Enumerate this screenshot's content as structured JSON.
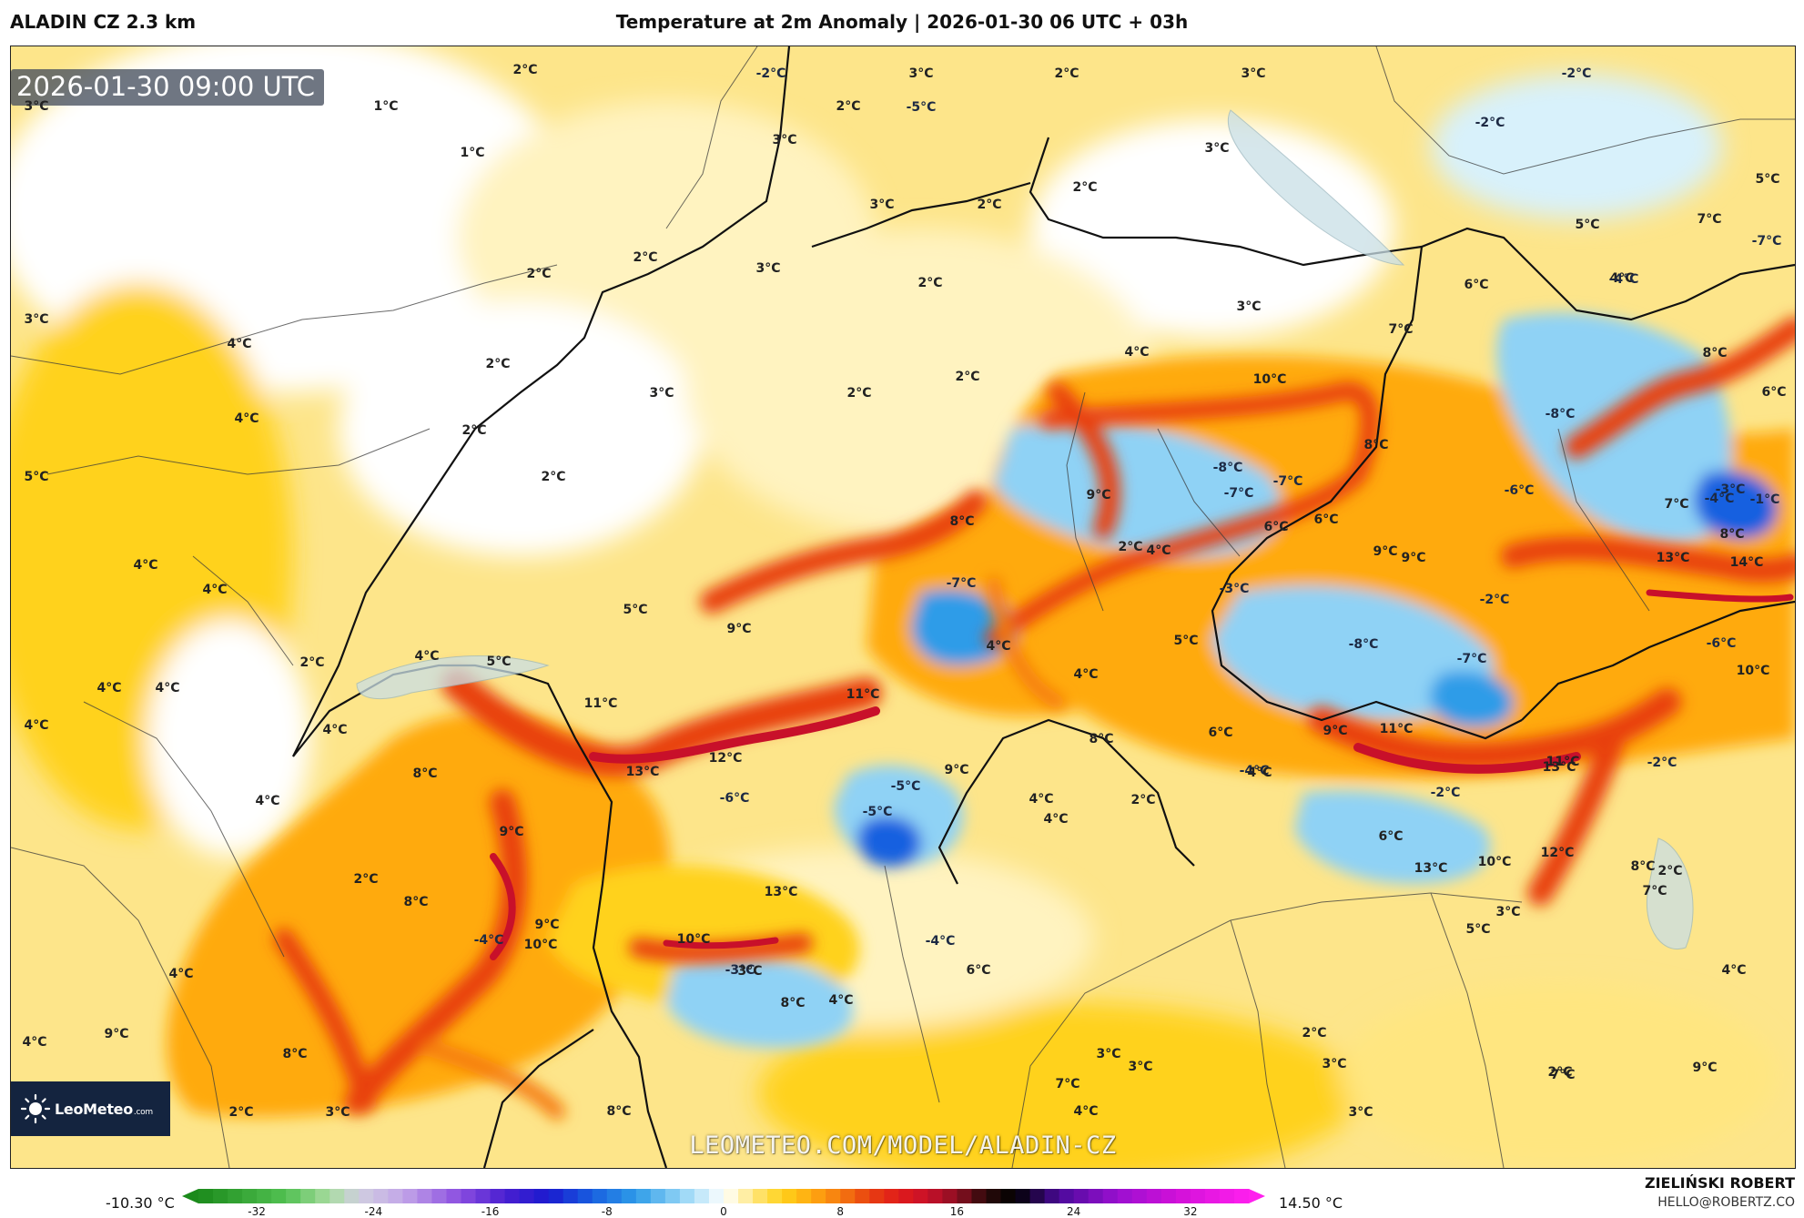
{
  "header": {
    "model": "ALADIN CZ 2.3 km",
    "title": "Temperature at 2m Anomaly | 2026-01-30 06 UTC + 03h"
  },
  "map": {
    "valid_time": "2026-01-30 09:00 UTC",
    "watermark": "LEOMETEO.COM/MODEL/ALADIN-CZ",
    "logo": {
      "name": "LeoMeteo",
      "suffix": ".com",
      "icon": "sun-icon"
    },
    "labels": [
      {
        "t": "2°C",
        "v": 2
      },
      {
        "t": "-2°C",
        "v": -2
      },
      {
        "t": "3°C",
        "v": 3
      },
      {
        "t": "2°C",
        "v": 2
      },
      {
        "t": "3°C",
        "v": 3
      },
      {
        "t": "-2°C",
        "v": -2
      },
      {
        "t": "3°C",
        "v": 3
      },
      {
        "t": "1°C",
        "v": 1
      },
      {
        "t": "2°C",
        "v": 2
      },
      {
        "t": "-5°C",
        "v": -5
      },
      {
        "t": "-2°C",
        "v": -2
      },
      {
        "t": "1°C",
        "v": 1
      },
      {
        "t": "3°C",
        "v": 3
      },
      {
        "t": "3°C",
        "v": 3
      },
      {
        "t": "2°C",
        "v": 2
      },
      {
        "t": "5°C",
        "v": 5
      },
      {
        "t": "3°C",
        "v": 3
      },
      {
        "t": "2°C",
        "v": 2
      },
      {
        "t": "5°C",
        "v": 5
      },
      {
        "t": "7°C",
        "v": 7
      },
      {
        "t": "-7°C",
        "v": -7
      },
      {
        "t": "4°C",
        "v": 4
      },
      {
        "t": "2°C",
        "v": 2
      },
      {
        "t": "2°C",
        "v": 2
      },
      {
        "t": "3°C",
        "v": 3
      },
      {
        "t": "2°C",
        "v": 2
      },
      {
        "t": "6°C",
        "v": 6
      },
      {
        "t": "-4°C",
        "v": -4
      },
      {
        "t": "3°C",
        "v": 3
      },
      {
        "t": "3°C",
        "v": 3
      },
      {
        "t": "7°C",
        "v": 7
      },
      {
        "t": "4°C",
        "v": 4
      },
      {
        "t": "2°C",
        "v": 2
      },
      {
        "t": "4°C",
        "v": 4
      },
      {
        "t": "8°C",
        "v": 8
      },
      {
        "t": "2°C",
        "v": 2
      },
      {
        "t": "3°C",
        "v": 3
      },
      {
        "t": "2°C",
        "v": 2
      },
      {
        "t": "10°C",
        "v": 10
      },
      {
        "t": "6°C",
        "v": 6
      },
      {
        "t": "4°C",
        "v": 4
      },
      {
        "t": "2°C",
        "v": 2
      },
      {
        "t": "-8°C",
        "v": -8
      },
      {
        "t": "5°C",
        "v": 5
      },
      {
        "t": "8°C",
        "v": 8
      },
      {
        "t": "2°C",
        "v": 2
      },
      {
        "t": "-7°C",
        "v": -7
      },
      {
        "t": "-8°C",
        "v": -8
      },
      {
        "t": "-6°C",
        "v": -6
      },
      {
        "t": "-3°C",
        "v": -3
      },
      {
        "t": "9°C",
        "v": 9
      },
      {
        "t": "-7°C",
        "v": -7
      },
      {
        "t": "7°C",
        "v": 7
      },
      {
        "t": "-4°C",
        "v": -4
      },
      {
        "t": "-1°C",
        "v": -1
      },
      {
        "t": "2°C",
        "v": 2
      },
      {
        "t": "6°C",
        "v": 6
      },
      {
        "t": "8°C",
        "v": 8
      },
      {
        "t": "6°C",
        "v": 6
      },
      {
        "t": "9°C",
        "v": 9
      },
      {
        "t": "8°C",
        "v": 8
      },
      {
        "t": "4°C",
        "v": 4
      },
      {
        "t": "9°C",
        "v": 9
      },
      {
        "t": "13°C",
        "v": 13
      },
      {
        "t": "14°C",
        "v": 14
      },
      {
        "t": "4°C",
        "v": 4
      },
      {
        "t": "-7°C",
        "v": -7
      },
      {
        "t": "4°C",
        "v": 4
      },
      {
        "t": "-3°C",
        "v": -3
      },
      {
        "t": "-2°C",
        "v": -2
      },
      {
        "t": "5°C",
        "v": 5
      },
      {
        "t": "9°C",
        "v": 9
      },
      {
        "t": "5°C",
        "v": 5
      },
      {
        "t": "4°C",
        "v": 4
      },
      {
        "t": "-8°C",
        "v": -8
      },
      {
        "t": "-6°C",
        "v": -6
      },
      {
        "t": "2°C",
        "v": 2
      },
      {
        "t": "4°C",
        "v": 4
      },
      {
        "t": "-7°C",
        "v": -7
      },
      {
        "t": "5°C",
        "v": 5
      },
      {
        "t": "10°C",
        "v": 10
      },
      {
        "t": "4°C",
        "v": 4
      },
      {
        "t": "4°C",
        "v": 4
      },
      {
        "t": "4°C",
        "v": 4
      },
      {
        "t": "11°C",
        "v": 11
      },
      {
        "t": "11°C",
        "v": 11
      },
      {
        "t": "4°C",
        "v": 4
      },
      {
        "t": "4°C",
        "v": 4
      },
      {
        "t": "11°C",
        "v": 11
      },
      {
        "t": "6°C",
        "v": 6
      },
      {
        "t": "9°C",
        "v": 9
      },
      {
        "t": "12°C",
        "v": 12
      },
      {
        "t": "13°C",
        "v": 13
      },
      {
        "t": "13°C",
        "v": 13
      },
      {
        "t": "8°C",
        "v": 8
      },
      {
        "t": "-4°C",
        "v": -4
      },
      {
        "t": "9°C",
        "v": 9
      },
      {
        "t": "-2°C",
        "v": -2
      },
      {
        "t": "8°C",
        "v": 8
      },
      {
        "t": "-5°C",
        "v": -5
      },
      {
        "t": "11°C",
        "v": 11
      },
      {
        "t": "4°C",
        "v": 4
      },
      {
        "t": "2°C",
        "v": 2
      },
      {
        "t": "4°C",
        "v": 4
      },
      {
        "t": "-2°C",
        "v": -2
      },
      {
        "t": "-6°C",
        "v": -6
      },
      {
        "t": "-5°C",
        "v": -5
      },
      {
        "t": "6°C",
        "v": 6
      },
      {
        "t": "12°C",
        "v": 12
      },
      {
        "t": "4°C",
        "v": 4
      },
      {
        "t": "10°C",
        "v": 10
      },
      {
        "t": "9°C",
        "v": 9
      },
      {
        "t": "4°C",
        "v": 4
      },
      {
        "t": "8°C",
        "v": 8
      },
      {
        "t": "10°C",
        "v": 10
      },
      {
        "t": "7°C",
        "v": 7
      },
      {
        "t": "13°C",
        "v": 13
      },
      {
        "t": "13°C",
        "v": 13
      },
      {
        "t": "2°C",
        "v": 2
      },
      {
        "t": "8°C",
        "v": 8
      },
      {
        "t": "-4°C",
        "v": -4
      },
      {
        "t": "5°C",
        "v": 5
      },
      {
        "t": "10°C",
        "v": 10
      },
      {
        "t": "3°C",
        "v": 3
      },
      {
        "t": "2°C",
        "v": 2
      },
      {
        "t": "9°C",
        "v": 9
      },
      {
        "t": "-3°C",
        "v": -3
      },
      {
        "t": "-4°C",
        "v": -4
      },
      {
        "t": "4°C",
        "v": 4
      },
      {
        "t": "4°C",
        "v": 4
      },
      {
        "t": "3°C",
        "v": 3
      },
      {
        "t": "6°C",
        "v": 6
      },
      {
        "t": "8°C",
        "v": 8
      },
      {
        "t": "4°C",
        "v": 4
      },
      {
        "t": "3°C",
        "v": 3
      },
      {
        "t": "3°C",
        "v": 3
      },
      {
        "t": "8°C",
        "v": 8
      },
      {
        "t": "2°C",
        "v": 2
      },
      {
        "t": "4°C",
        "v": 4
      },
      {
        "t": "9°C",
        "v": 9
      },
      {
        "t": "2°C",
        "v": 2
      },
      {
        "t": "3°C",
        "v": 3
      },
      {
        "t": "7°C",
        "v": 7
      },
      {
        "t": "9°C",
        "v": 9
      },
      {
        "t": "7°C",
        "v": 7
      },
      {
        "t": "8°C",
        "v": 8
      },
      {
        "t": "4°C",
        "v": 4
      },
      {
        "t": "3°C",
        "v": 3
      },
      {
        "t": "2°C",
        "v": 2
      },
      {
        "t": "3°C",
        "v": 3
      }
    ]
  },
  "colorbar": {
    "min_label": "-10.30 °C",
    "max_label": "14.50 °C",
    "range": [
      -36,
      36
    ],
    "ticks": [
      "-32",
      "-24",
      "-16",
      "-8",
      "0",
      "8",
      "16",
      "24",
      "32"
    ],
    "tick_values": [
      -32,
      -24,
      -16,
      -8,
      0,
      8,
      16,
      24,
      32
    ],
    "stops": [
      [
        -36,
        "#1b8a1b"
      ],
      [
        -30,
        "#52c052"
      ],
      [
        -27,
        "#a8dca0"
      ],
      [
        -25,
        "#d0cfe0"
      ],
      [
        -22,
        "#c3a6e8"
      ],
      [
        -18,
        "#8a4ce0"
      ],
      [
        -15,
        "#4a1fd0"
      ],
      [
        -12,
        "#1a1acf"
      ],
      [
        -9,
        "#1860e0"
      ],
      [
        -6,
        "#2e9ce8"
      ],
      [
        -3,
        "#8fd2f5"
      ],
      [
        -1,
        "#d8f1fb"
      ],
      [
        0,
        "#ffffff"
      ],
      [
        1,
        "#fff6c8"
      ],
      [
        2,
        "#ffe680"
      ],
      [
        4,
        "#ffd21a"
      ],
      [
        6,
        "#ffaa10"
      ],
      [
        8,
        "#f57a10"
      ],
      [
        10,
        "#e84010"
      ],
      [
        12,
        "#e01a1a"
      ],
      [
        14,
        "#c8102a"
      ],
      [
        16,
        "#8c0f22"
      ],
      [
        18,
        "#2a0a0a"
      ],
      [
        20,
        "#000000"
      ],
      [
        23,
        "#4a0a9a"
      ],
      [
        27,
        "#9a10d0"
      ],
      [
        31,
        "#d010d8"
      ],
      [
        36,
        "#ff20ee"
      ]
    ]
  },
  "credit": {
    "name": "ZIELIŃSKI ROBERT",
    "email": "HELLO@ROBERTZ.CO"
  }
}
